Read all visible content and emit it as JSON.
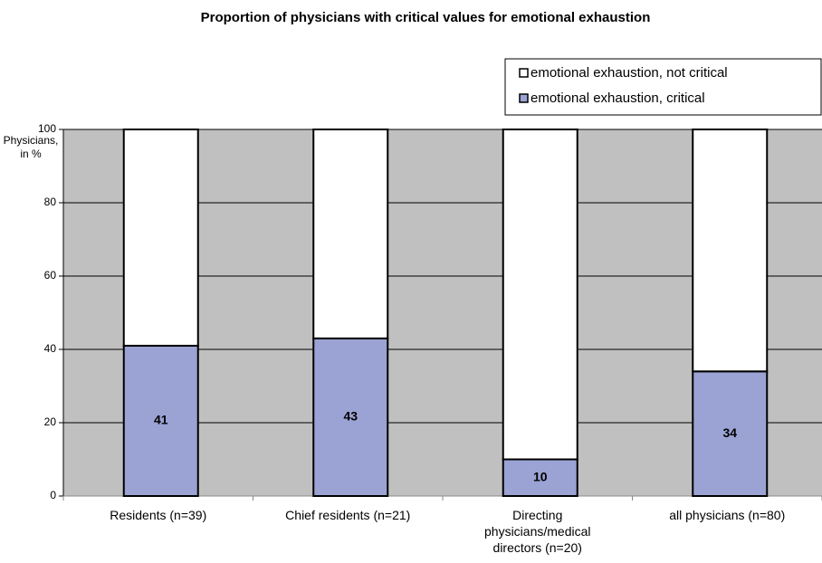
{
  "chart_data": {
    "type": "stacked_bar",
    "title": "Proportion of physicians with critical values for emotional exhaustion",
    "y_label": "Physicians, in %",
    "categories": [
      "Residents (n=39)",
      "Chief residents (n=21)",
      "Directing physicians/medical directors (n=20)",
      "all physicians (n=80)"
    ],
    "series": [
      {
        "name": "emotional exhaustion, critical",
        "color": "#9aa3d3",
        "values": [
          41,
          43,
          10,
          34
        ]
      },
      {
        "name": "emotional exhaustion, not critical",
        "color": "#ffffff",
        "values": [
          59,
          57,
          90,
          66
        ]
      }
    ],
    "data_labels_series": 0,
    "ylim": [
      0,
      100
    ],
    "yticks": [
      0,
      20,
      40,
      60,
      80,
      100
    ],
    "grid": true,
    "legend": "top-right",
    "background": "#c0c0c0"
  }
}
